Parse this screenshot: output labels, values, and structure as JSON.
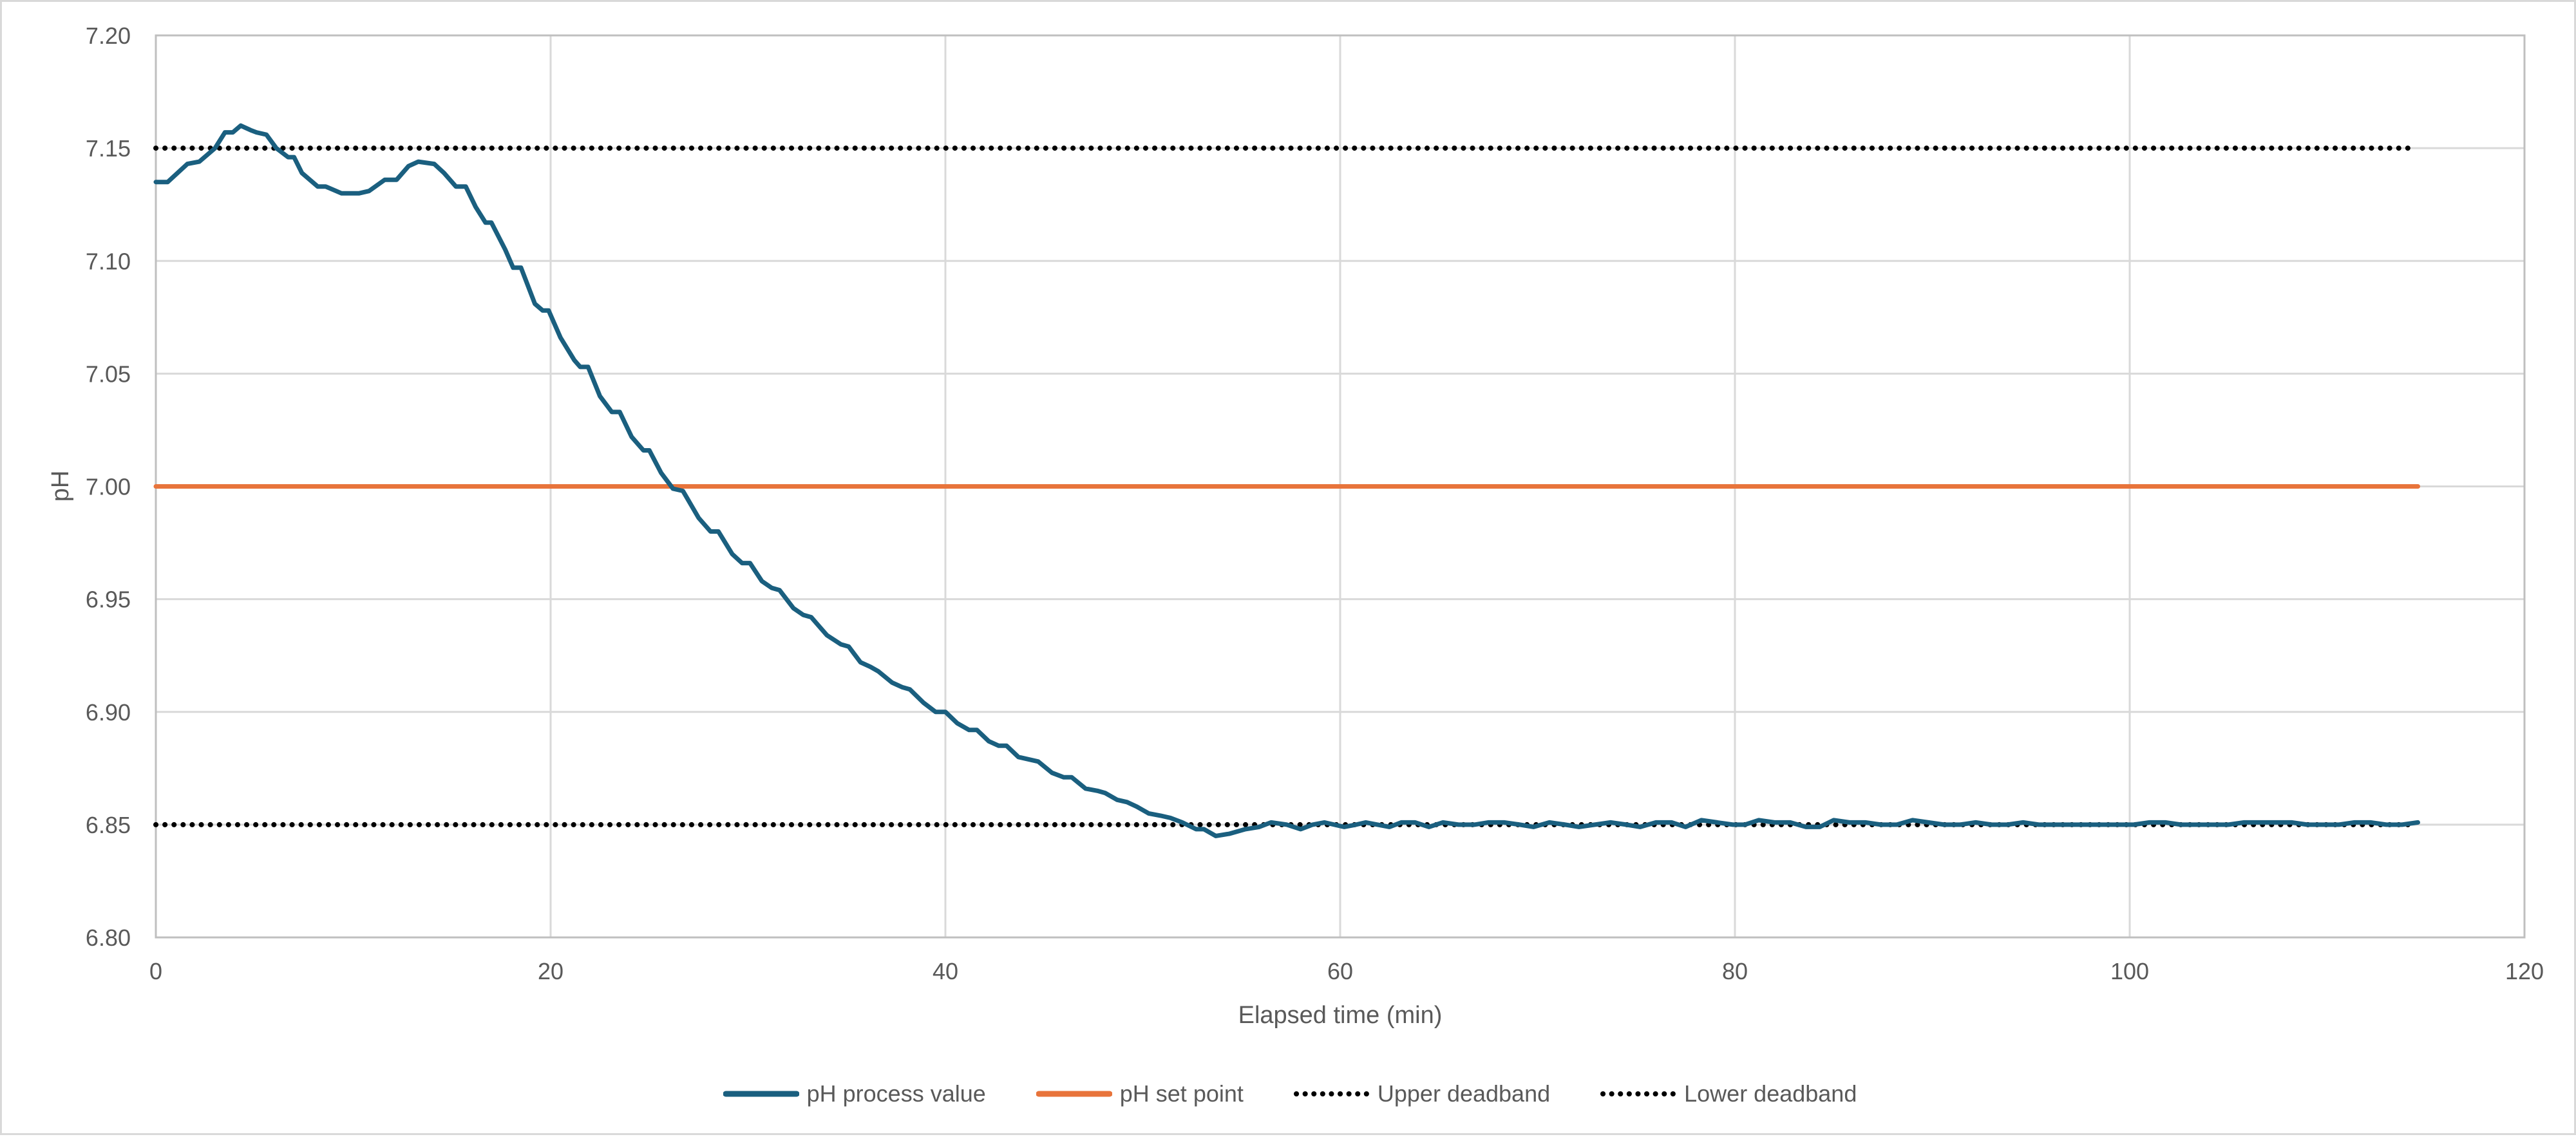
{
  "chart_data": {
    "type": "line",
    "title": "",
    "xlabel": "Elapsed time (min)",
    "ylabel": "pH",
    "xlim": [
      0,
      120
    ],
    "ylim": [
      6.8,
      7.2
    ],
    "x_ticks": [
      0,
      20,
      40,
      60,
      80,
      100,
      120
    ],
    "y_ticks": [
      6.8,
      6.85,
      6.9,
      6.95,
      7.0,
      7.05,
      7.1,
      7.15,
      7.2
    ],
    "x_tick_labels": [
      "0",
      "20",
      "40",
      "60",
      "80",
      "100",
      "120"
    ],
    "y_tick_labels": [
      "6.80",
      "6.85",
      "6.90",
      "6.95",
      "7.00",
      "7.05",
      "7.10",
      "7.15",
      "7.20"
    ],
    "grid": {
      "x": true,
      "y": true
    },
    "legend_position": "bottom",
    "series": [
      {
        "name": "pH process value",
        "color": "#1a5f7f",
        "style": "solid",
        "width": 7,
        "points": [
          [
            0.0,
            7.135
          ],
          [
            0.6,
            7.135
          ],
          [
            1.6,
            7.143
          ],
          [
            2.2,
            7.144
          ],
          [
            3.0,
            7.15
          ],
          [
            3.5,
            7.157
          ],
          [
            3.9,
            7.157
          ],
          [
            4.3,
            7.16
          ],
          [
            4.8,
            7.158
          ],
          [
            5.1,
            7.157
          ],
          [
            5.6,
            7.156
          ],
          [
            6.1,
            7.15
          ],
          [
            6.7,
            7.146
          ],
          [
            7.0,
            7.146
          ],
          [
            7.4,
            7.139
          ],
          [
            8.2,
            7.133
          ],
          [
            8.6,
            7.133
          ],
          [
            9.4,
            7.13
          ],
          [
            10.3,
            7.13
          ],
          [
            10.8,
            7.131
          ],
          [
            11.6,
            7.136
          ],
          [
            12.2,
            7.136
          ],
          [
            12.8,
            7.142
          ],
          [
            13.3,
            7.144
          ],
          [
            14.1,
            7.143
          ],
          [
            14.6,
            7.139
          ],
          [
            15.2,
            7.133
          ],
          [
            15.7,
            7.133
          ],
          [
            16.2,
            7.124
          ],
          [
            16.7,
            7.117
          ],
          [
            17.0,
            7.117
          ],
          [
            17.7,
            7.105
          ],
          [
            18.1,
            7.097
          ],
          [
            18.5,
            7.097
          ],
          [
            19.2,
            7.081
          ],
          [
            19.6,
            7.078
          ],
          [
            19.9,
            7.078
          ],
          [
            20.5,
            7.066
          ],
          [
            21.2,
            7.056
          ],
          [
            21.5,
            7.053
          ],
          [
            21.9,
            7.053
          ],
          [
            22.5,
            7.04
          ],
          [
            23.1,
            7.033
          ],
          [
            23.5,
            7.033
          ],
          [
            24.1,
            7.022
          ],
          [
            24.7,
            7.016
          ],
          [
            25.0,
            7.016
          ],
          [
            25.6,
            7.006
          ],
          [
            26.2,
            6.999
          ],
          [
            26.7,
            6.998
          ],
          [
            27.5,
            6.986
          ],
          [
            28.1,
            6.98
          ],
          [
            28.5,
            6.98
          ],
          [
            29.2,
            6.97
          ],
          [
            29.7,
            6.966
          ],
          [
            30.1,
            6.966
          ],
          [
            30.7,
            6.958
          ],
          [
            31.2,
            6.955
          ],
          [
            31.6,
            6.954
          ],
          [
            32.3,
            6.946
          ],
          [
            32.8,
            6.943
          ],
          [
            33.2,
            6.942
          ],
          [
            34.0,
            6.934
          ],
          [
            34.7,
            6.93
          ],
          [
            35.1,
            6.929
          ],
          [
            35.7,
            6.922
          ],
          [
            36.2,
            6.92
          ],
          [
            36.6,
            6.918
          ],
          [
            37.3,
            6.913
          ],
          [
            37.8,
            6.911
          ],
          [
            38.2,
            6.91
          ],
          [
            38.9,
            6.904
          ],
          [
            39.5,
            6.9
          ],
          [
            40.0,
            6.9
          ],
          [
            40.6,
            6.895
          ],
          [
            41.2,
            6.892
          ],
          [
            41.6,
            6.892
          ],
          [
            42.2,
            6.887
          ],
          [
            42.7,
            6.885
          ],
          [
            43.1,
            6.885
          ],
          [
            43.7,
            6.88
          ],
          [
            44.2,
            6.879
          ],
          [
            44.7,
            6.878
          ],
          [
            45.4,
            6.873
          ],
          [
            46.0,
            6.871
          ],
          [
            46.4,
            6.871
          ],
          [
            47.1,
            6.866
          ],
          [
            47.7,
            6.865
          ],
          [
            48.1,
            6.864
          ],
          [
            48.7,
            6.861
          ],
          [
            49.2,
            6.86
          ],
          [
            49.7,
            6.858
          ],
          [
            50.3,
            6.855
          ],
          [
            50.9,
            6.854
          ],
          [
            51.4,
            6.853
          ],
          [
            52.0,
            6.851
          ],
          [
            52.7,
            6.848
          ],
          [
            53.1,
            6.848
          ],
          [
            53.7,
            6.845
          ],
          [
            54.4,
            6.846
          ],
          [
            55.2,
            6.848
          ],
          [
            55.9,
            6.849
          ],
          [
            56.5,
            6.851
          ],
          [
            57.3,
            6.85
          ],
          [
            58.0,
            6.848
          ],
          [
            58.6,
            6.85
          ],
          [
            59.2,
            6.851
          ],
          [
            59.7,
            6.85
          ],
          [
            60.2,
            6.849
          ],
          [
            60.8,
            6.85
          ],
          [
            61.3,
            6.851
          ],
          [
            61.9,
            6.85
          ],
          [
            62.5,
            6.849
          ],
          [
            63.1,
            6.851
          ],
          [
            63.8,
            6.851
          ],
          [
            64.5,
            6.849
          ],
          [
            65.2,
            6.851
          ],
          [
            66.0,
            6.85
          ],
          [
            66.8,
            6.85
          ],
          [
            67.5,
            6.851
          ],
          [
            68.3,
            6.851
          ],
          [
            69.1,
            6.85
          ],
          [
            69.8,
            6.849
          ],
          [
            70.6,
            6.851
          ],
          [
            71.4,
            6.85
          ],
          [
            72.1,
            6.849
          ],
          [
            72.9,
            6.85
          ],
          [
            73.7,
            6.851
          ],
          [
            74.5,
            6.85
          ],
          [
            75.2,
            6.849
          ],
          [
            76.0,
            6.851
          ],
          [
            76.8,
            6.851
          ],
          [
            77.5,
            6.849
          ],
          [
            78.3,
            6.852
          ],
          [
            79.1,
            6.851
          ],
          [
            79.9,
            6.85
          ],
          [
            80.5,
            6.85
          ],
          [
            81.2,
            6.852
          ],
          [
            82.0,
            6.851
          ],
          [
            82.8,
            6.851
          ],
          [
            83.6,
            6.849
          ],
          [
            84.3,
            6.849
          ],
          [
            85.0,
            6.852
          ],
          [
            85.8,
            6.851
          ],
          [
            86.6,
            6.851
          ],
          [
            87.4,
            6.85
          ],
          [
            88.2,
            6.85
          ],
          [
            89.0,
            6.852
          ],
          [
            89.8,
            6.851
          ],
          [
            90.6,
            6.85
          ],
          [
            91.4,
            6.85
          ],
          [
            92.2,
            6.851
          ],
          [
            93.0,
            6.85
          ],
          [
            93.8,
            6.85
          ],
          [
            94.6,
            6.851
          ],
          [
            95.4,
            6.85
          ],
          [
            96.2,
            6.85
          ],
          [
            97.0,
            6.85
          ],
          [
            97.8,
            6.85
          ],
          [
            98.6,
            6.85
          ],
          [
            99.4,
            6.85
          ],
          [
            100.2,
            6.85
          ],
          [
            101.0,
            6.851
          ],
          [
            101.8,
            6.851
          ],
          [
            102.6,
            6.85
          ],
          [
            103.4,
            6.85
          ],
          [
            104.2,
            6.85
          ],
          [
            105.0,
            6.85
          ],
          [
            105.8,
            6.851
          ],
          [
            106.6,
            6.851
          ],
          [
            107.4,
            6.851
          ],
          [
            108.2,
            6.851
          ],
          [
            109.0,
            6.85
          ],
          [
            109.8,
            6.85
          ],
          [
            110.6,
            6.85
          ],
          [
            111.4,
            6.851
          ],
          [
            112.2,
            6.851
          ],
          [
            113.0,
            6.85
          ],
          [
            113.8,
            6.85
          ],
          [
            114.6,
            6.851
          ]
        ]
      },
      {
        "name": "pH set point",
        "color": "#e8743b",
        "style": "solid",
        "width": 7,
        "points": [
          [
            0,
            7.0
          ],
          [
            114.6,
            7.0
          ]
        ]
      },
      {
        "name": "Upper deadband",
        "color": "#000000",
        "style": "dotted",
        "width": 6,
        "points": [
          [
            0,
            7.15
          ],
          [
            114.3,
            7.15
          ]
        ]
      },
      {
        "name": "Lower deadband",
        "color": "#000000",
        "style": "dotted",
        "width": 6,
        "points": [
          [
            0,
            6.85
          ],
          [
            114.3,
            6.85
          ]
        ]
      }
    ]
  },
  "axes": {
    "x_title": "Elapsed time (min)",
    "y_title": "pH"
  },
  "legend": {
    "items": [
      {
        "label": "pH process value",
        "color": "#1a5f7f",
        "style": "solid"
      },
      {
        "label": "pH set point",
        "color": "#e8743b",
        "style": "solid"
      },
      {
        "label": "Upper deadband",
        "color": "#000000",
        "style": "dotted"
      },
      {
        "label": "Lower deadband",
        "color": "#000000",
        "style": "dotted"
      }
    ]
  },
  "colors": {
    "gridline": "#d9d9d9",
    "axis_text": "#595959",
    "frame": "#d9d9d9"
  }
}
